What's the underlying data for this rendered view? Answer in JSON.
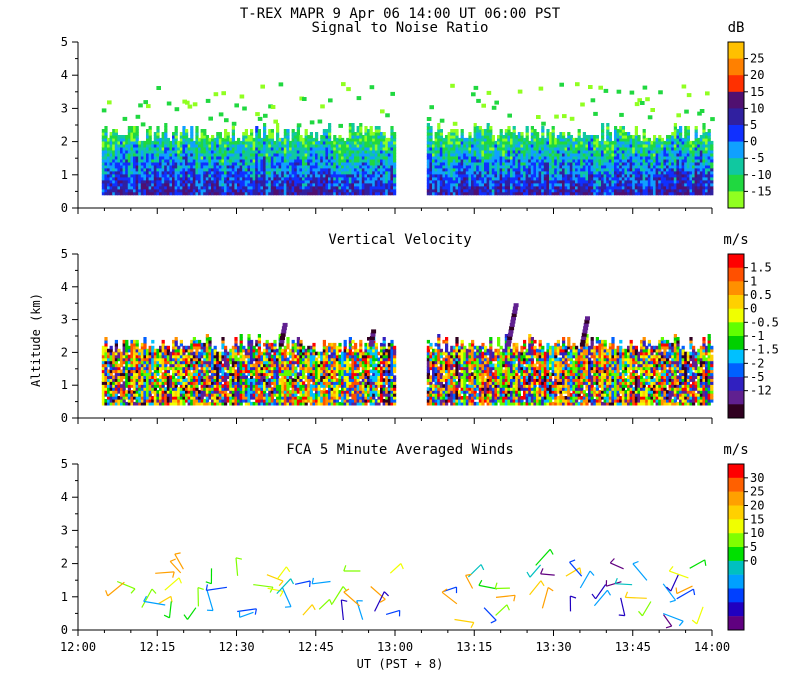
{
  "title": "T-REX  MAPR  9 Apr 06  14:00 UT  06:00  PST",
  "xlabel": "UT  (PST + 8)",
  "ylabel": "Altitude (km)",
  "chart_data": [
    {
      "type": "heatmap",
      "title": "Signal to Noise Ratio",
      "units": "dB",
      "x_range": [
        "12:00",
        "14:00"
      ],
      "ylim": [
        0,
        5
      ],
      "yticks": [
        "0",
        "1",
        "2",
        "3",
        "4",
        "5"
      ],
      "xticks": [
        "12:00",
        "12:15",
        "12:30",
        "12:45",
        "13:00",
        "13:15",
        "13:30",
        "13:45",
        "14:00"
      ],
      "colorbar": {
        "labels": [
          "25",
          "20",
          "15",
          "10",
          "5",
          "0",
          "-5",
          "-10",
          "-15"
        ],
        "colors": [
          "#ffc000",
          "#ff8000",
          "#ff3000",
          "#501070",
          "#3020a0",
          "#1030ff",
          "#10a0ff",
          "#10c8a0",
          "#20d840",
          "#90ff20"
        ]
      },
      "data_gaps": [
        [
          "13:00",
          "13:06"
        ]
      ],
      "data_altitude_range_km": [
        0.4,
        2.3
      ]
    },
    {
      "type": "heatmap",
      "title": "Vertical Velocity",
      "units": "m/s",
      "x_range": [
        "12:00",
        "14:00"
      ],
      "ylim": [
        0,
        5
      ],
      "yticks": [
        "0",
        "1",
        "2",
        "3",
        "4",
        "5"
      ],
      "colorbar": {
        "labels": [
          "1.5",
          "1",
          "0.5",
          "0",
          "-0.5",
          "-1",
          "-1.5",
          "-2",
          "-5",
          "-12"
        ],
        "colors": [
          "#ff0000",
          "#ff5000",
          "#ff9000",
          "#ffd000",
          "#f0ff00",
          "#60ff00",
          "#00d000",
          "#00c0ff",
          "#0060ff",
          "#3020c0",
          "#602090",
          "#300020"
        ]
      },
      "data_gaps": [
        [
          "13:00",
          "13:06"
        ]
      ],
      "data_altitude_range_km": [
        0.4,
        2.3
      ]
    },
    {
      "type": "scatter",
      "title": "FCA 5 Minute Averaged Winds",
      "units": "m/s",
      "x_range": [
        "12:00",
        "14:00"
      ],
      "ylim": [
        0,
        5
      ],
      "yticks": [
        "0",
        "1",
        "2",
        "3",
        "4",
        "5"
      ],
      "colorbar": {
        "labels": [
          "30",
          "25",
          "20",
          "15",
          "10",
          "5",
          "0"
        ],
        "colors": [
          "#ff0000",
          "#ff6000",
          "#ffa000",
          "#ffd000",
          "#f0ff00",
          "#80ff00",
          "#00e000",
          "#00c0c0",
          "#00a0ff",
          "#0040ff",
          "#2000c0",
          "#600080"
        ]
      },
      "barb_altitude_range_km": [
        0.3,
        2.0
      ]
    }
  ]
}
